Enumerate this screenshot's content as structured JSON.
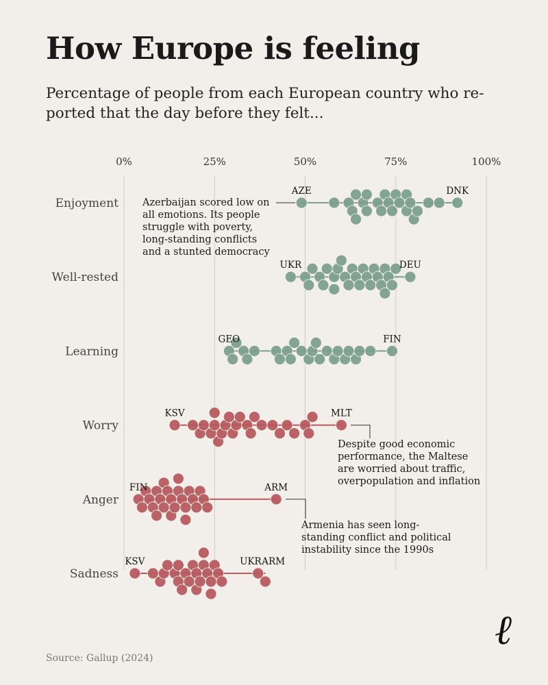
{
  "title": "How Europe is feeling",
  "subtitle": "Percentage of people from each European country who re-ported that the day before they felt...",
  "source": "Source: Gallup (2024)",
  "logo": "ℓ",
  "colors": {
    "positive": "#7c9f8d",
    "negative": "#b65a5e",
    "grid": "#cfcbc5",
    "background": "#f2efea"
  },
  "chart_data": {
    "type": "scatter",
    "subtype": "beeswarm",
    "xlim": [
      0,
      100
    ],
    "x_ticks": [
      "0%",
      "25%",
      "50%",
      "75%",
      "100%"
    ],
    "x_tick_values": [
      0,
      25,
      50,
      75,
      100
    ],
    "grid": true,
    "rows": [
      {
        "label": "Enjoyment",
        "color": "positive",
        "values": [
          49,
          58,
          62,
          63,
          64,
          64,
          66,
          67,
          67,
          70,
          71,
          72,
          73,
          74,
          75,
          76,
          78,
          78,
          79,
          80,
          81,
          84,
          87,
          92
        ],
        "labels": [
          {
            "text": "AZE",
            "value": 49
          },
          {
            "text": "DNK",
            "value": 92
          }
        ]
      },
      {
        "label": "Well-rested",
        "color": "positive",
        "values": [
          46,
          50,
          51,
          52,
          54,
          55,
          56,
          58,
          58,
          59,
          60,
          61,
          62,
          63,
          64,
          65,
          66,
          67,
          68,
          69,
          70,
          71,
          72,
          72,
          73,
          74,
          75,
          79
        ],
        "labels": [
          {
            "text": "UKR",
            "value": 46
          },
          {
            "text": "DEU",
            "value": 79
          }
        ]
      },
      {
        "label": "Learning",
        "color": "positive",
        "values": [
          29,
          30,
          31,
          33,
          34,
          36,
          42,
          43,
          45,
          46,
          47,
          49,
          51,
          52,
          53,
          54,
          56,
          58,
          59,
          61,
          62,
          64,
          65,
          68,
          74
        ],
        "labels": [
          {
            "text": "GEO",
            "value": 29
          },
          {
            "text": "FIN",
            "value": 74
          }
        ]
      },
      {
        "label": "Worry",
        "color": "negative",
        "values": [
          14,
          19,
          21,
          22,
          24,
          25,
          25,
          26,
          27,
          28,
          29,
          30,
          31,
          32,
          34,
          35,
          36,
          38,
          41,
          43,
          45,
          47,
          50,
          51,
          52,
          60
        ],
        "labels": [
          {
            "text": "KSV",
            "value": 14
          },
          {
            "text": "MLT",
            "value": 60
          }
        ]
      },
      {
        "label": "Anger",
        "color": "negative",
        "values": [
          4,
          5,
          6,
          7,
          8,
          9,
          9,
          10,
          11,
          11,
          12,
          13,
          13,
          14,
          15,
          15,
          16,
          17,
          17,
          18,
          19,
          20,
          21,
          22,
          23,
          42
        ],
        "labels": [
          {
            "text": "FIN",
            "value": 4
          },
          {
            "text": "ARM",
            "value": 42
          }
        ]
      },
      {
        "label": "Sadness",
        "color": "negative",
        "values": [
          3,
          8,
          10,
          11,
          12,
          14,
          15,
          15,
          16,
          17,
          18,
          19,
          20,
          20,
          21,
          22,
          22,
          23,
          24,
          24,
          25,
          26,
          27,
          37,
          39
        ],
        "labels": [
          {
            "text": "KSV",
            "value": 3
          },
          {
            "text": "UKR",
            "value": 37
          },
          {
            "text": "ARM",
            "value": 39
          }
        ]
      }
    ],
    "annotations": [
      {
        "row": 0,
        "value": 49,
        "text": [
          "Azerbaijan scored low on",
          "all emotions. Its people",
          "struggle with poverty,",
          "long-standing conflicts",
          "and a stunted democracy"
        ]
      },
      {
        "row": 3,
        "value": 60,
        "text": [
          "Despite good economic",
          "performance, the Maltese",
          "are worried about traffic,",
          "overpopulation and inflation"
        ]
      },
      {
        "row": 4,
        "value": 42,
        "text": [
          "Armenia has seen long-",
          "standing conflict and political",
          "instability since the 1990s"
        ]
      }
    ]
  }
}
